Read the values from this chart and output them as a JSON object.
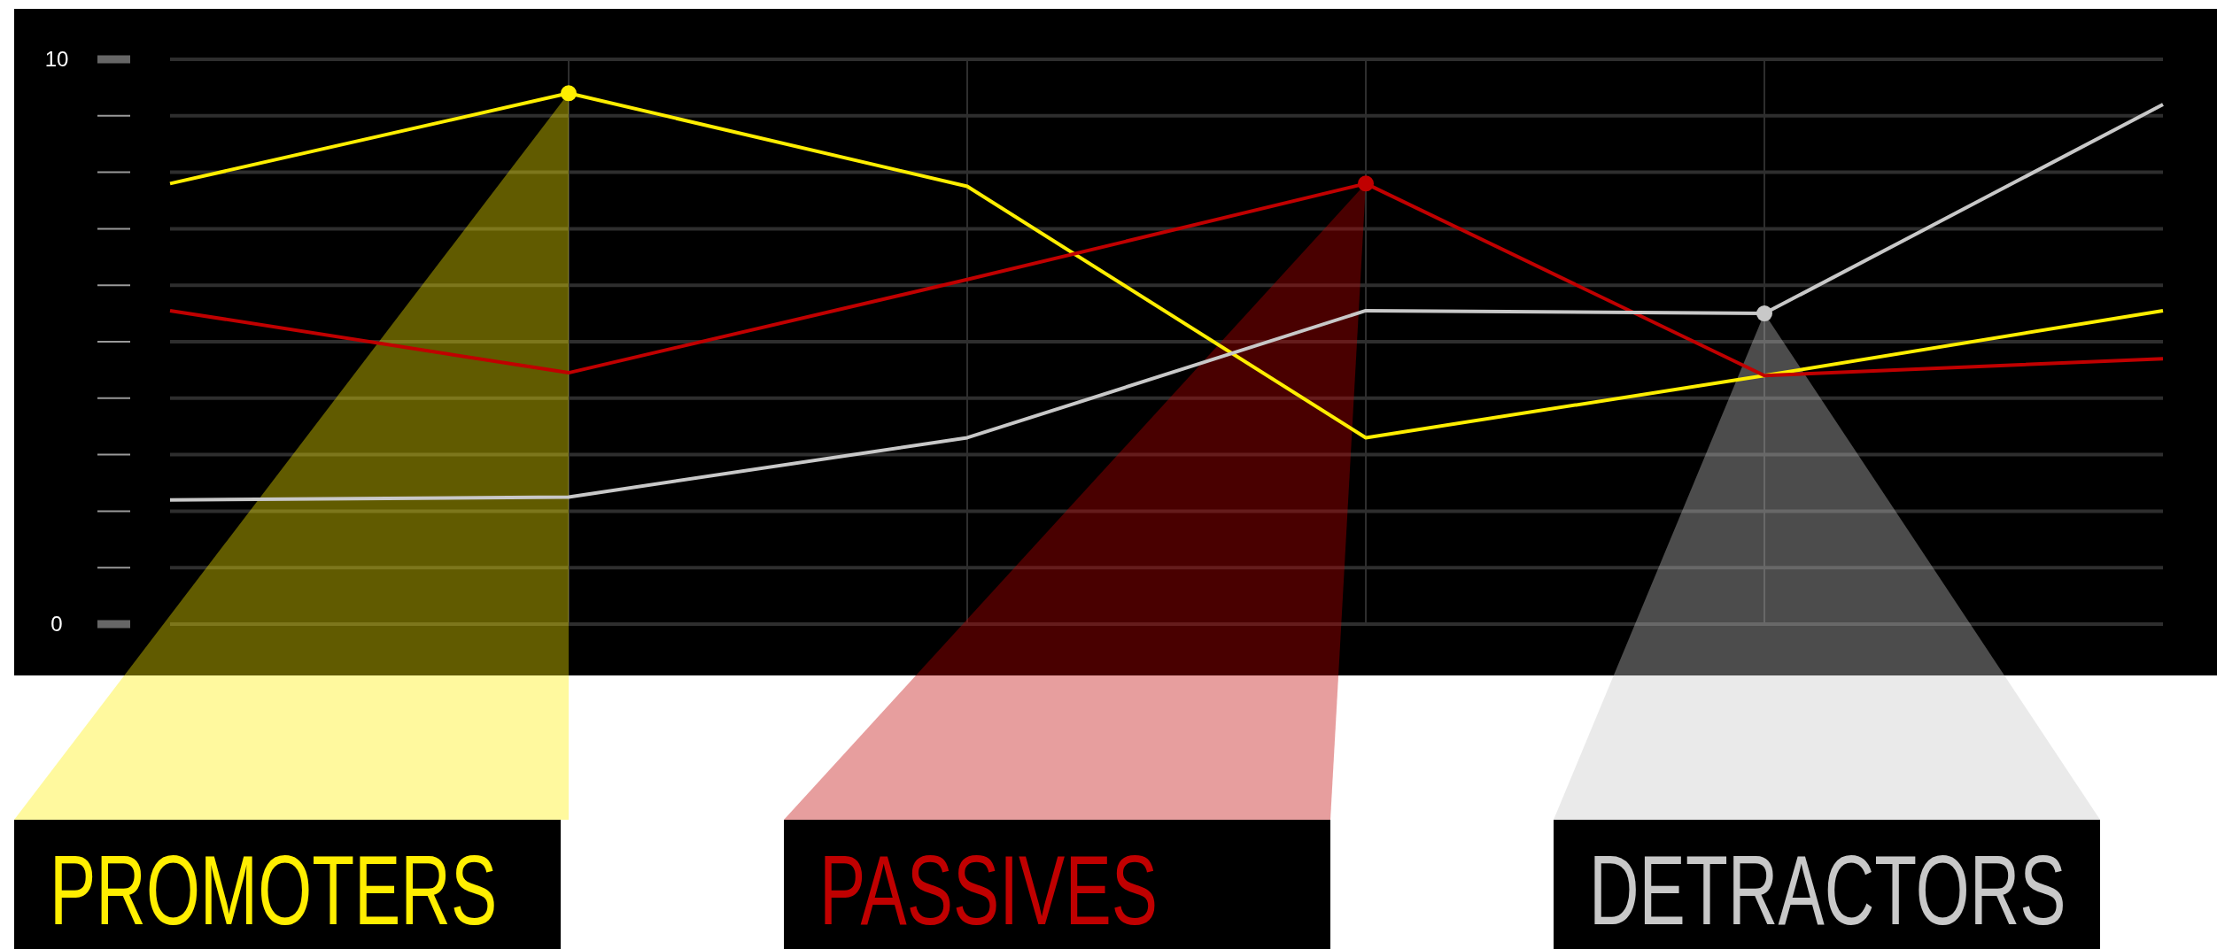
{
  "chart_data": {
    "type": "line",
    "categories": [
      null,
      null,
      null,
      null,
      null,
      null
    ],
    "series": [
      {
        "name": "PROMOTERS",
        "color": "#ffee00",
        "values": [
          7.8,
          9.4,
          7.75,
          3.3,
          4.4,
          5.55
        ]
      },
      {
        "name": "PASSIVES",
        "color": "#c00000",
        "values": [
          5.55,
          4.45,
          6.1,
          7.8,
          4.4,
          4.7
        ]
      },
      {
        "name": "DETRACTORS",
        "color": "#c8c8c8",
        "values": [
          2.2,
          2.25,
          3.3,
          5.55,
          5.5,
          9.2
        ]
      },
      {
        "type": "scatter",
        "marker": "circle",
        "color": "#ffee00",
        "values": [
          null,
          9.4,
          null,
          null,
          null,
          null
        ]
      },
      {
        "type": "scatter",
        "marker": "circle",
        "color": "#c00000",
        "values": [
          null,
          null,
          null,
          7.8,
          null,
          null
        ]
      },
      {
        "type": "scatter",
        "marker": "circle",
        "color": "#c8c8c8",
        "values": [
          null,
          null,
          null,
          null,
          5.5,
          null
        ]
      }
    ],
    "ylim": [
      0,
      10
    ],
    "yticks": [
      {
        "value": 0,
        "label": "0"
      },
      {
        "value": 1,
        "label": null
      },
      {
        "value": 2,
        "label": null
      },
      {
        "value": 3,
        "label": null
      },
      {
        "value": 4,
        "label": null
      },
      {
        "value": 5,
        "label": null
      },
      {
        "value": 6,
        "label": null
      },
      {
        "value": 7,
        "label": null
      },
      {
        "value": 8,
        "label": null
      },
      {
        "value": 9,
        "label": null
      },
      {
        "value": 10,
        "label": "10"
      }
    ],
    "grid": true,
    "legend": "bottom",
    "marker": "none",
    "line_style": "solid",
    "tick_labels": "y"
  }
}
